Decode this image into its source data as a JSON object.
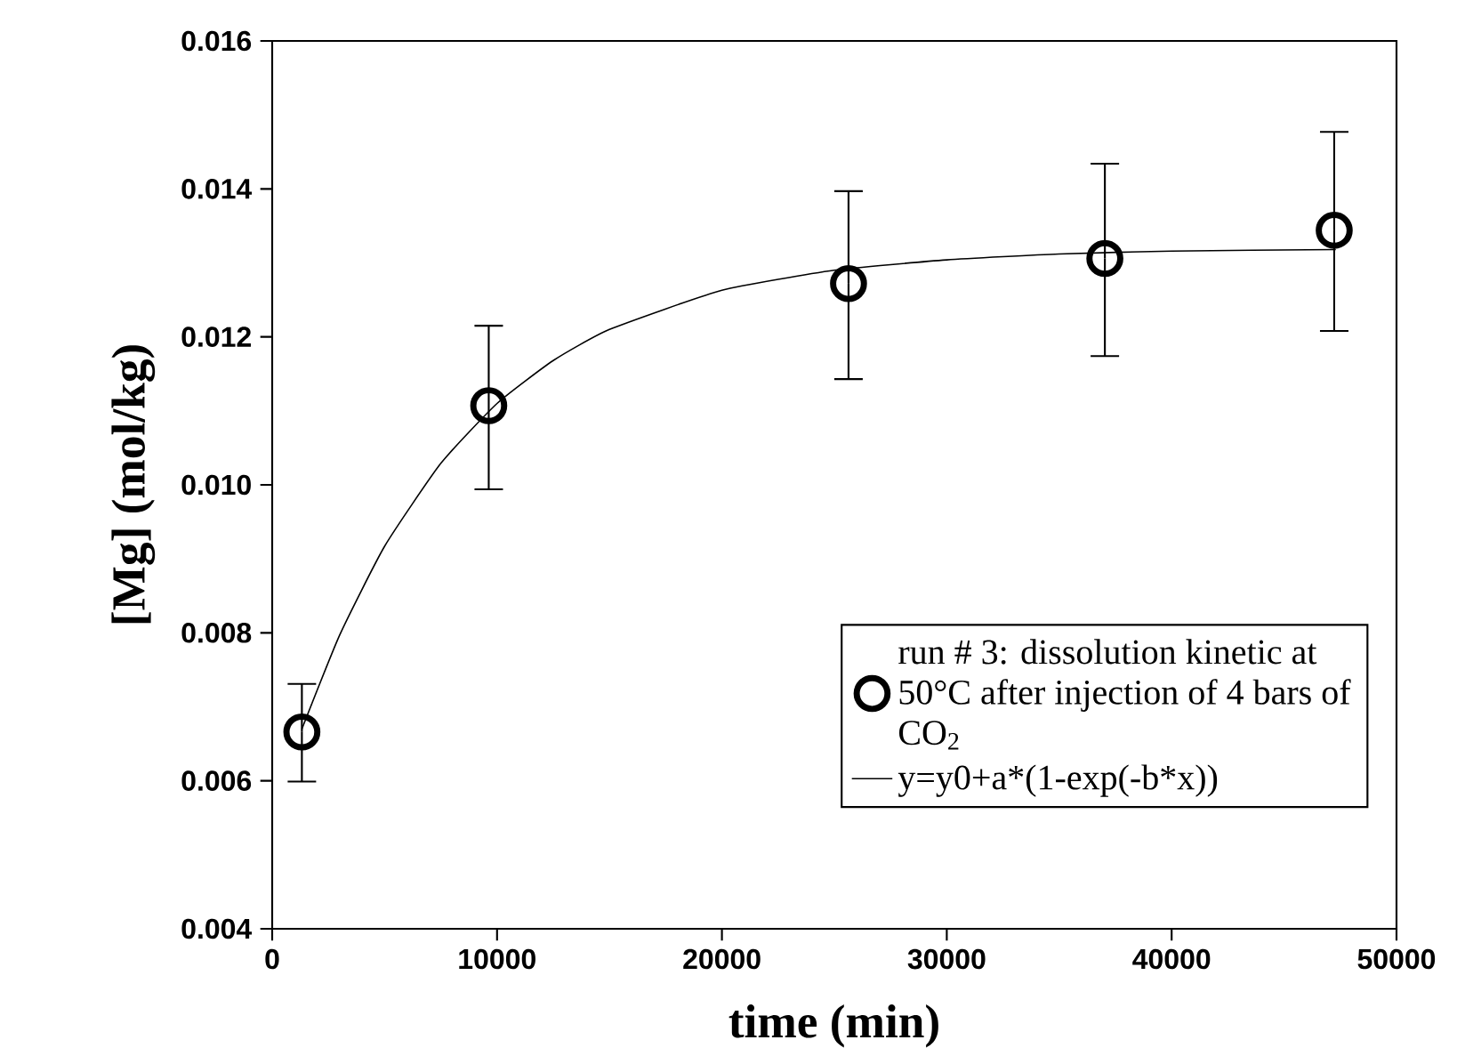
{
  "chart_data": {
    "type": "scatter",
    "xlabel": "time (min)",
    "ylabel": "[Mg] (mol/kg)",
    "xlim": [
      0,
      50000
    ],
    "xticks": [
      0,
      10000,
      20000,
      30000,
      40000,
      50000
    ],
    "ylim": [
      0.004,
      0.016
    ],
    "yticks": [
      0.004,
      0.006,
      0.008,
      {
        "value": 0.01,
        "label": "0.010"
      },
      0.012,
      0.014,
      0.016
    ],
    "grid": false,
    "legend": "bottom right",
    "series": [
      {
        "type": "scatter",
        "name": "run # 3: dissolution kinetic at 50°C after injection of 4 bars of CO$_{2}$",
        "color": "#000000",
        "marker": "circle",
        "x": [
          1320,
          9630,
          25630,
          37030,
          47230
        ],
        "values": [
          0.00666,
          0.01107,
          0.01272,
          0.01306,
          0.01344
        ],
        "errors": [
          [
            0.00599,
            0.00731
          ],
          [
            0.00994,
            0.01215
          ],
          [
            0.01143,
            0.01397
          ],
          [
            0.01174,
            0.01434
          ],
          [
            0.01208,
            0.01477
          ]
        ]
      },
      {
        "type": "line",
        "name": "y=y0+a*(1-exp(-b*x))",
        "color": "#000000",
        "marker": "none",
        "line_style": "solid",
        "x": [
          1320,
          3000,
          5000,
          7500,
          10000,
          12500,
          15000,
          20000,
          25000,
          30000,
          35000,
          40000,
          47300
        ],
        "values": [
          0.0067,
          0.00797,
          0.00917,
          0.01029,
          0.0111,
          0.01168,
          0.0121,
          0.01263,
          0.0129,
          0.01304,
          0.01312,
          0.01316,
          0.01318
        ]
      }
    ]
  }
}
